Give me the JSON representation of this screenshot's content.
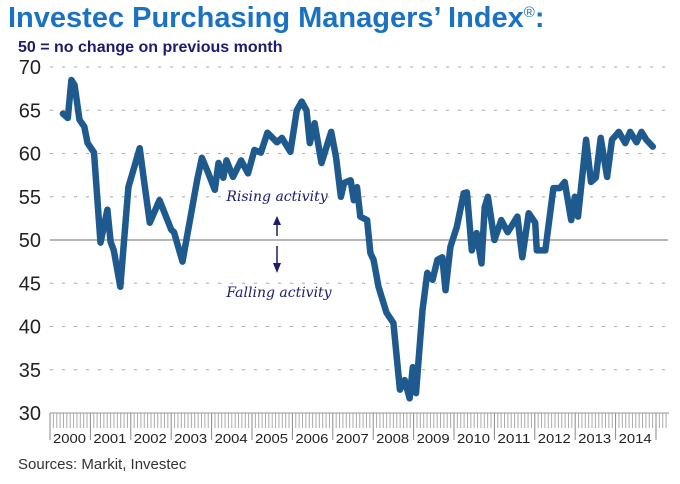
{
  "header": {
    "title": "Investec Purchasing Managers’ Index",
    "title_mark": "®",
    "title_suffix": ":",
    "subtitle": "50 =  no change on previous month"
  },
  "footer": {
    "source": "Sources: Markit, Investec"
  },
  "colors": {
    "line": "#1f5a8f",
    "title": "#1b72c2",
    "subtitle": "#1c1c6e",
    "grid": "#9a9a9a"
  },
  "chart_data": {
    "type": "line",
    "title": "Investec Purchasing Managers’ Index",
    "xlabel": "",
    "ylabel": "",
    "ylim": [
      30,
      70
    ],
    "xlim": [
      2000,
      2015
    ],
    "yticks": [
      30,
      35,
      40,
      45,
      50,
      55,
      60,
      65,
      70
    ],
    "xtick_labels": [
      "2000",
      "2001",
      "2002",
      "2003",
      "2004",
      "2005",
      "2006",
      "2007",
      "2008",
      "2009",
      "2010",
      "2011",
      "2012",
      "2013",
      "2014"
    ],
    "grid": true,
    "reference_line": 50,
    "annotations": {
      "rising": "Rising activity",
      "falling": "Falling activity"
    },
    "series": [
      {
        "name": "Investec PMI",
        "x": [
          2000.32,
          2000.44,
          2000.53,
          2000.61,
          2000.73,
          2000.85,
          2000.93,
          2001.09,
          2001.25,
          2001.42,
          2001.5,
          2001.58,
          2001.74,
          2001.94,
          2002.22,
          2002.35,
          2002.47,
          2002.71,
          2003.0,
          2003.07,
          2003.28,
          2003.48,
          2003.64,
          2003.76,
          2003.92,
          2004.08,
          2004.17,
          2004.29,
          2004.37,
          2004.53,
          2004.73,
          2004.9,
          2005.06,
          2005.22,
          2005.38,
          2005.62,
          2005.74,
          2005.95,
          2006.11,
          2006.23,
          2006.35,
          2006.43,
          2006.55,
          2006.72,
          2006.96,
          2007.08,
          2007.2,
          2007.28,
          2007.44,
          2007.52,
          2007.6,
          2007.68,
          2007.85,
          2007.93,
          2008.01,
          2008.13,
          2008.33,
          2008.5,
          2008.66,
          2008.78,
          2008.9,
          2008.98,
          2009.06,
          2009.22,
          2009.34,
          2009.47,
          2009.59,
          2009.71,
          2009.79,
          2009.91,
          2010.07,
          2010.24,
          2010.32,
          2010.44,
          2010.56,
          2010.68,
          2010.76,
          2010.84,
          2011.0,
          2011.17,
          2011.33,
          2011.57,
          2011.69,
          2011.85,
          2012.01,
          2012.05,
          2012.26,
          2012.46,
          2012.62,
          2012.74,
          2012.9,
          2012.99,
          2013.07,
          2013.27,
          2013.39,
          2013.51,
          2013.63,
          2013.79,
          2013.91,
          2014.08,
          2014.24,
          2014.36,
          2014.52,
          2014.64,
          2014.76,
          2014.92
        ],
        "y": [
          64.6,
          64.1,
          68.5,
          67.9,
          63.9,
          63.1,
          61.2,
          60.1,
          49.7,
          53.5,
          49.8,
          48.8,
          44.6,
          56.1,
          60.6,
          56.1,
          52.0,
          54.6,
          51.2,
          50.9,
          47.5,
          52.7,
          56.9,
          59.5,
          57.7,
          55.8,
          58.9,
          57.2,
          59.2,
          57.3,
          59.2,
          57.7,
          60.4,
          60.1,
          62.4,
          61.3,
          61.8,
          60.2,
          65.0,
          66.0,
          65.0,
          61.2,
          63.5,
          58.9,
          62.5,
          59.6,
          55.0,
          56.6,
          56.9,
          54.6,
          56.1,
          52.7,
          52.3,
          48.5,
          47.7,
          44.6,
          41.6,
          40.4,
          32.7,
          33.8,
          31.7,
          35.3,
          32.3,
          41.9,
          46.2,
          45.4,
          47.7,
          48.0,
          44.2,
          49.2,
          51.5,
          55.4,
          55.5,
          48.8,
          50.8,
          47.3,
          53.8,
          55.0,
          50.0,
          52.3,
          50.9,
          52.7,
          48.0,
          53.1,
          52.0,
          48.8,
          48.8,
          56.0,
          56.0,
          56.7,
          52.3,
          55.0,
          52.7,
          61.6,
          56.7,
          57.2,
          61.8,
          57.3,
          61.6,
          62.5,
          61.2,
          62.5,
          61.3,
          62.5,
          61.6,
          60.8
        ]
      }
    ]
  }
}
